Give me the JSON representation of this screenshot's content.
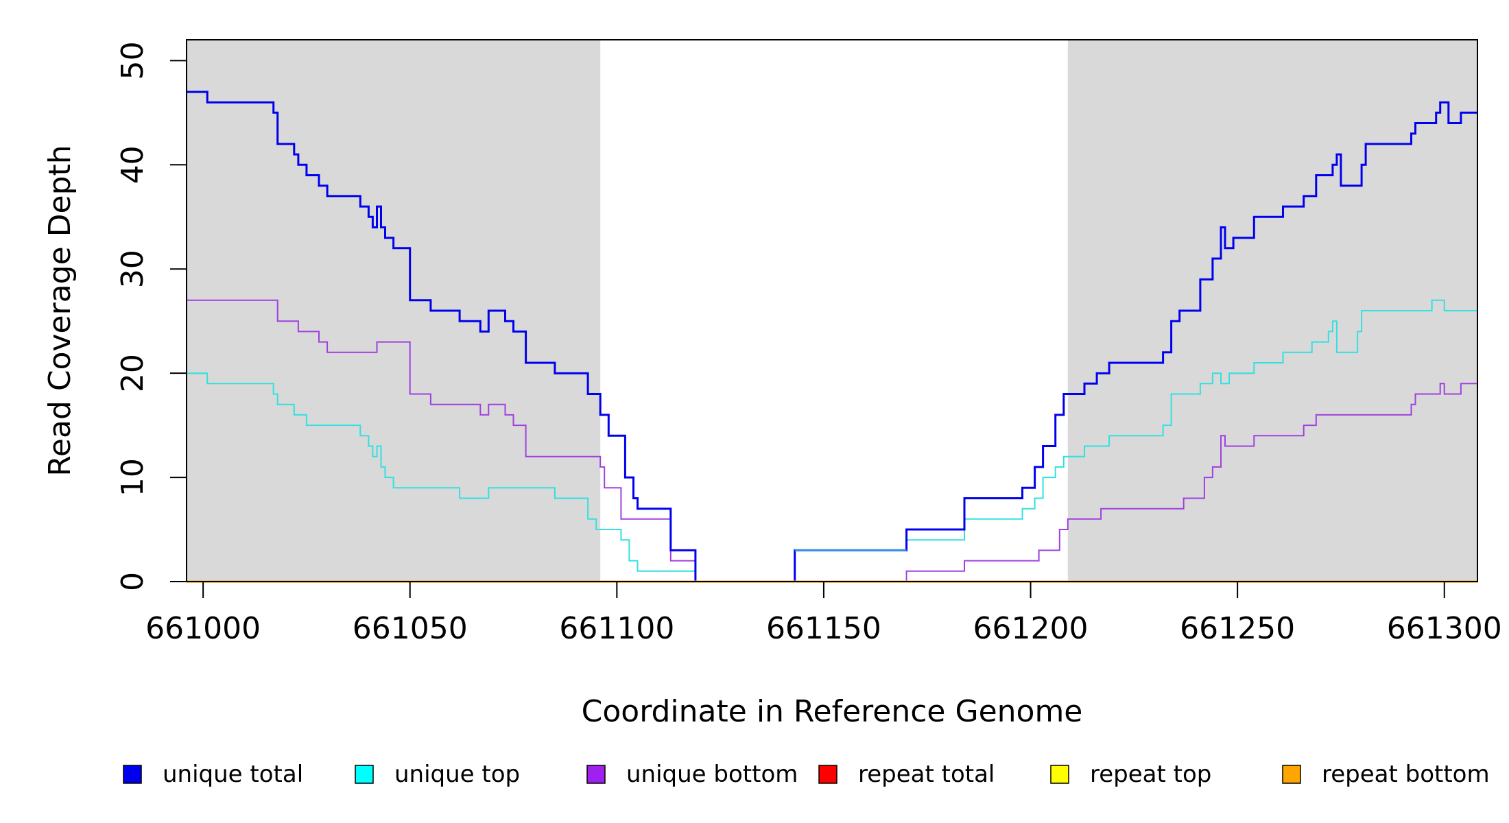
{
  "chart_data": {
    "type": "line",
    "step": true,
    "xlabel": "Coordinate in Reference Genome",
    "ylabel": "Read Coverage Depth",
    "xlim": [
      660996,
      661308
    ],
    "ylim": [
      0,
      52
    ],
    "x_ticks": [
      661000,
      661050,
      661100,
      661150,
      661200,
      661250,
      661300
    ],
    "y_ticks": [
      0,
      10,
      20,
      30,
      40,
      50
    ],
    "shaded_regions": [
      [
        660996,
        661096
      ],
      [
        661209,
        661308
      ]
    ],
    "shade_color": "#d9d9d9",
    "legend_position": "bottom",
    "series": [
      {
        "name": "unique total",
        "color": "#0000ee",
        "width": 3,
        "points": [
          [
            660996,
            47
          ],
          [
            661001,
            46
          ],
          [
            661017,
            45
          ],
          [
            661018,
            42
          ],
          [
            661022,
            41
          ],
          [
            661023,
            40
          ],
          [
            661025,
            39
          ],
          [
            661028,
            38
          ],
          [
            661030,
            37
          ],
          [
            661038,
            36
          ],
          [
            661040,
            35
          ],
          [
            661041,
            34
          ],
          [
            661042,
            36
          ],
          [
            661043,
            34
          ],
          [
            661044,
            33
          ],
          [
            661046,
            32
          ],
          [
            661050,
            27
          ],
          [
            661055,
            26
          ],
          [
            661062,
            25
          ],
          [
            661067,
            24
          ],
          [
            661069,
            26
          ],
          [
            661073,
            25
          ],
          [
            661075,
            24
          ],
          [
            661078,
            21
          ],
          [
            661085,
            20
          ],
          [
            661093,
            18
          ],
          [
            661096,
            16
          ],
          [
            661098,
            14
          ],
          [
            661102,
            10
          ],
          [
            661104,
            8
          ],
          [
            661105,
            7
          ],
          [
            661113,
            3
          ],
          [
            661119,
            0
          ],
          [
            661143,
            3
          ],
          [
            661170,
            5
          ],
          [
            661184,
            8
          ],
          [
            661198,
            9
          ],
          [
            661201,
            11
          ],
          [
            661203,
            13
          ],
          [
            661206,
            16
          ],
          [
            661208,
            18
          ],
          [
            661213,
            19
          ],
          [
            661216,
            20
          ],
          [
            661219,
            21
          ],
          [
            661232,
            22
          ],
          [
            661234,
            25
          ],
          [
            661236,
            26
          ],
          [
            661241,
            29
          ],
          [
            661244,
            31
          ],
          [
            661246,
            34
          ],
          [
            661247,
            32
          ],
          [
            661249,
            33
          ],
          [
            661254,
            35
          ],
          [
            661261,
            36
          ],
          [
            661266,
            37
          ],
          [
            661269,
            39
          ],
          [
            661273,
            40
          ],
          [
            661274,
            41
          ],
          [
            661275,
            38
          ],
          [
            661280,
            40
          ],
          [
            661281,
            42
          ],
          [
            661292,
            43
          ],
          [
            661293,
            44
          ],
          [
            661298,
            45
          ],
          [
            661299,
            46
          ],
          [
            661301,
            44
          ],
          [
            661304,
            45
          ],
          [
            661308,
            45
          ]
        ]
      },
      {
        "name": "unique top",
        "color": "#33e0e0",
        "width": 2,
        "points": [
          [
            660996,
            20
          ],
          [
            661001,
            19
          ],
          [
            661017,
            18
          ],
          [
            661018,
            17
          ],
          [
            661022,
            16
          ],
          [
            661025,
            15
          ],
          [
            661038,
            14
          ],
          [
            661040,
            13
          ],
          [
            661041,
            12
          ],
          [
            661042,
            13
          ],
          [
            661043,
            11
          ],
          [
            661044,
            10
          ],
          [
            661046,
            9
          ],
          [
            661062,
            8
          ],
          [
            661069,
            9
          ],
          [
            661085,
            8
          ],
          [
            661093,
            6
          ],
          [
            661095,
            5
          ],
          [
            661101,
            4
          ],
          [
            661103,
            2
          ],
          [
            661105,
            1
          ],
          [
            661119,
            0
          ],
          [
            661143,
            3
          ],
          [
            661170,
            4
          ],
          [
            661184,
            6
          ],
          [
            661198,
            7
          ],
          [
            661201,
            8
          ],
          [
            661203,
            10
          ],
          [
            661206,
            11
          ],
          [
            661208,
            12
          ],
          [
            661213,
            13
          ],
          [
            661219,
            14
          ],
          [
            661232,
            15
          ],
          [
            661234,
            18
          ],
          [
            661241,
            19
          ],
          [
            661244,
            20
          ],
          [
            661246,
            19
          ],
          [
            661248,
            20
          ],
          [
            661254,
            21
          ],
          [
            661261,
            22
          ],
          [
            661268,
            23
          ],
          [
            661272,
            24
          ],
          [
            661273,
            25
          ],
          [
            661274,
            22
          ],
          [
            661279,
            24
          ],
          [
            661280,
            26
          ],
          [
            661297,
            27
          ],
          [
            661300,
            26
          ],
          [
            661308,
            26
          ]
        ]
      },
      {
        "name": "unique bottom",
        "color": "#a040e0",
        "width": 2,
        "points": [
          [
            660996,
            27
          ],
          [
            661018,
            25
          ],
          [
            661023,
            24
          ],
          [
            661028,
            23
          ],
          [
            661030,
            22
          ],
          [
            661042,
            23
          ],
          [
            661050,
            18
          ],
          [
            661055,
            17
          ],
          [
            661067,
            16
          ],
          [
            661069,
            17
          ],
          [
            661073,
            16
          ],
          [
            661075,
            15
          ],
          [
            661078,
            12
          ],
          [
            661096,
            11
          ],
          [
            661097,
            9
          ],
          [
            661101,
            6
          ],
          [
            661113,
            2
          ],
          [
            661119,
            0
          ],
          [
            661170,
            1
          ],
          [
            661184,
            2
          ],
          [
            661202,
            3
          ],
          [
            661207,
            5
          ],
          [
            661209,
            6
          ],
          [
            661217,
            7
          ],
          [
            661237,
            8
          ],
          [
            661242,
            10
          ],
          [
            661244,
            11
          ],
          [
            661246,
            14
          ],
          [
            661247,
            13
          ],
          [
            661254,
            14
          ],
          [
            661266,
            15
          ],
          [
            661269,
            16
          ],
          [
            661292,
            17
          ],
          [
            661293,
            18
          ],
          [
            661299,
            19
          ],
          [
            661300,
            18
          ],
          [
            661304,
            19
          ],
          [
            661308,
            19
          ]
        ]
      },
      {
        "name": "repeat total",
        "color": "#ff0000",
        "width": 2,
        "points": [
          [
            660996,
            0
          ],
          [
            661308,
            0
          ]
        ]
      },
      {
        "name": "repeat top",
        "color": "#ffff00",
        "width": 2,
        "points": [
          [
            660996,
            0
          ],
          [
            661308,
            0
          ]
        ]
      },
      {
        "name": "repeat bottom",
        "color": "#ffa500",
        "width": 3,
        "points": [
          [
            660996,
            0
          ],
          [
            661308,
            0
          ]
        ]
      }
    ],
    "overlap": {
      "name": "unique total",
      "color": "#3a8fe8",
      "width": 3,
      "points": [
        [
          661143,
          3
        ],
        [
          661170,
          3
        ]
      ]
    },
    "legend": [
      {
        "label": "unique total",
        "color": "#0000ee"
      },
      {
        "label": "unique top",
        "color": "#00ffff"
      },
      {
        "label": "unique bottom",
        "color": "#a020f0"
      },
      {
        "label": "repeat total",
        "color": "#ff0000"
      },
      {
        "label": "repeat top",
        "color": "#ffff00"
      },
      {
        "label": "repeat bottom",
        "color": "#ffa500"
      }
    ]
  }
}
